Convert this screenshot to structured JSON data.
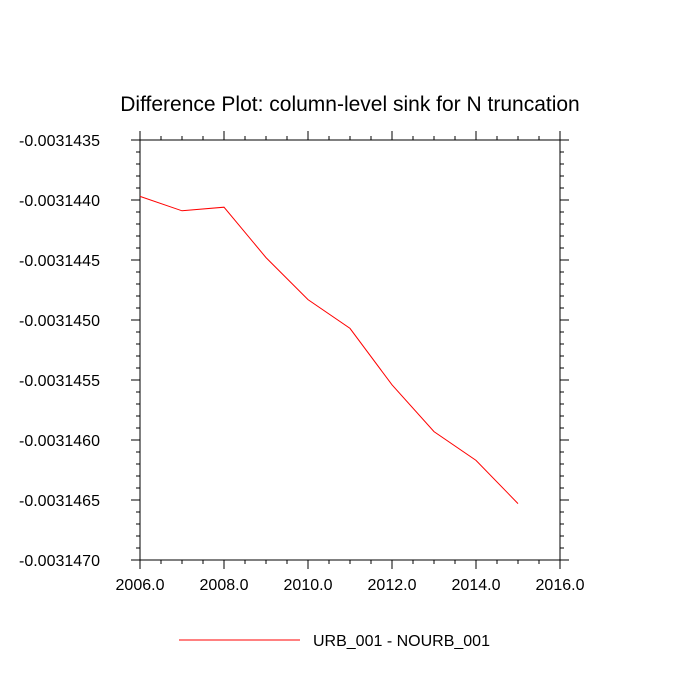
{
  "chart_data": {
    "type": "line",
    "title": "Difference Plot: column-level sink for N truncation",
    "xlabel": "",
    "ylabel": "",
    "xlim": [
      2006.0,
      2016.0
    ],
    "ylim": [
      -0.003147,
      -0.0031435
    ],
    "x_ticks": [
      "2006.0",
      "2008.0",
      "2010.0",
      "2012.0",
      "2014.0",
      "2016.0"
    ],
    "y_ticks": [
      "-0.0031435",
      "-0.0031440",
      "-0.0031445",
      "-0.0031450",
      "-0.0031455",
      "-0.0031460",
      "-0.0031465",
      "-0.0031470"
    ],
    "grid": false,
    "legend_position": "bottom-center",
    "series": [
      {
        "name": "URB_001 - NOURB_001",
        "color": "#ff0000",
        "x": [
          2006,
          2007,
          2008,
          2009,
          2010,
          2011,
          2012,
          2013,
          2014,
          2015
        ],
        "y": [
          -0.00314397,
          -0.00314409,
          -0.00314406,
          -0.00314448,
          -0.00314483,
          -0.00314507,
          -0.00314554,
          -0.00314593,
          -0.00314617,
          -0.00314653
        ]
      }
    ]
  }
}
